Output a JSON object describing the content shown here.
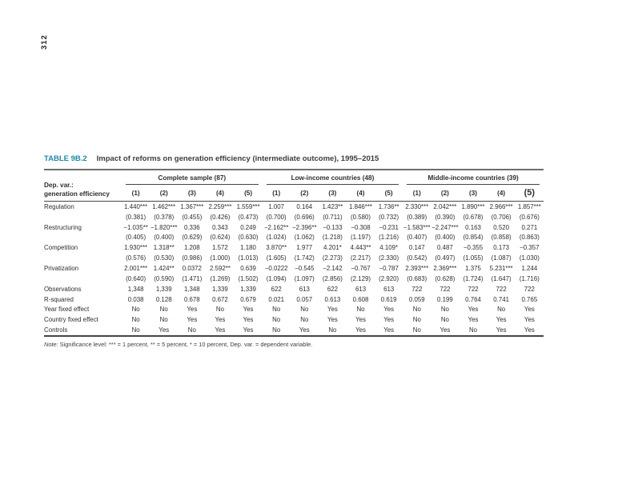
{
  "page": {
    "folio": "312"
  },
  "table": {
    "label": "TABLE 9B.2",
    "title": "Impact of reforms on generation efficiency (intermediate outcome), 1995–2015",
    "dep_var_line1": "Dep. var.:",
    "dep_var_line2": "generation efficiency",
    "groups": [
      {
        "label": "Complete sample (87)"
      },
      {
        "label": "Low-income countries (48)"
      },
      {
        "label": "Middle-income countries (39)"
      }
    ],
    "col_headers": [
      "(1)",
      "(2)",
      "(3)",
      "(4)",
      "(5)",
      "(1)",
      "(2)",
      "(3)",
      "(4)",
      "(5)",
      "(1)",
      "(2)",
      "(3)",
      "(4)",
      "(5)"
    ],
    "rows": [
      {
        "label": "Regulation",
        "coef": [
          "1.440***",
          "1.462***",
          "1.367***",
          "2.259***",
          "1.559***",
          "1.007",
          "0.164",
          "1.423**",
          "1.846***",
          "1.736**",
          "2.330***",
          "2.042***",
          "1.890***",
          "2.966***",
          "1.857***"
        ],
        "se": [
          "(0.381)",
          "(0.378)",
          "(0.455)",
          "(0.426)",
          "(0.473)",
          "(0.700)",
          "(0.696)",
          "(0.711)",
          "(0.580)",
          "(0.732)",
          "(0.389)",
          "(0.390)",
          "(0.678)",
          "(0.706)",
          "(0.676)"
        ]
      },
      {
        "label": "Restructuring",
        "coef": [
          "−1.035**",
          "−1.820***",
          "0.336",
          "0.343",
          "0.249",
          "−2.162**",
          "−2.396**",
          "−0.133",
          "−0.308",
          "−0.231",
          "−1.583***",
          "−2.247***",
          "0.163",
          "0.520",
          "0.271"
        ],
        "se": [
          "(0.405)",
          "(0.400)",
          "(0.629)",
          "(0.624)",
          "(0.630)",
          "(1.024)",
          "(1.062)",
          "(1.218)",
          "(1.197)",
          "(1.216)",
          "(0.407)",
          "(0.400)",
          "(0.854)",
          "(0.858)",
          "(0.863)"
        ]
      },
      {
        "label": "Competition",
        "coef": [
          "1.930***",
          "1.318**",
          "1.208",
          "1.572",
          "1.180",
          "3.870**",
          "1.977",
          "4.201*",
          "4.443**",
          "4.109*",
          "0.147",
          "0.487",
          "−0.355",
          "0.173",
          "−0.357"
        ],
        "se": [
          "(0.576)",
          "(0.530)",
          "(0.986)",
          "(1.000)",
          "(1.013)",
          "(1.605)",
          "(1.742)",
          "(2.273)",
          "(2.217)",
          "(2.330)",
          "(0.542)",
          "(0.497)",
          "(1.055)",
          "(1.087)",
          "(1.030)"
        ]
      },
      {
        "label": "Privatization",
        "coef": [
          "2.001***",
          "1.424**",
          "0.0372",
          "2.592**",
          "0.639",
          "−0.0222",
          "−0.545",
          "−2.142",
          "−0.767",
          "−0.787",
          "2.393***",
          "2.369***",
          "1.375",
          "5.231***",
          "1.244"
        ],
        "se": [
          "(0.640)",
          "(0.590)",
          "(1.471)",
          "(1.269)",
          "(1.502)",
          "(1.094)",
          "(1.097)",
          "(2.856)",
          "(2.129)",
          "(2.920)",
          "(0.683)",
          "(0.628)",
          "(1.724)",
          "(1.647)",
          "(1.716)"
        ]
      },
      {
        "label": "Observations",
        "coef": [
          "1,348",
          "1,339",
          "1,348",
          "1,339",
          "1,339",
          "622",
          "613",
          "622",
          "613",
          "613",
          "722",
          "722",
          "722",
          "722",
          "722"
        ]
      },
      {
        "label": "R-squared",
        "coef": [
          "0.038",
          "0.128",
          "0.678",
          "0.672",
          "0.679",
          "0.021",
          "0.057",
          "0.613",
          "0.608",
          "0.619",
          "0.059",
          "0.199",
          "0.764",
          "0.741",
          "0.765"
        ]
      },
      {
        "label": "Year fixed effect",
        "coef": [
          "No",
          "No",
          "Yes",
          "No",
          "Yes",
          "No",
          "No",
          "Yes",
          "No",
          "Yes",
          "No",
          "No",
          "Yes",
          "No",
          "Yes"
        ]
      },
      {
        "label": "Country fixed effect",
        "coef": [
          "No",
          "No",
          "Yes",
          "Yes",
          "Yes",
          "No",
          "No",
          "Yes",
          "Yes",
          "Yes",
          "No",
          "No",
          "Yes",
          "Yes",
          "Yes"
        ]
      },
      {
        "label": "Controls",
        "coef": [
          "No",
          "Yes",
          "No",
          "Yes",
          "Yes",
          "No",
          "Yes",
          "No",
          "Yes",
          "Yes",
          "No",
          "Yes",
          "No",
          "Yes",
          "Yes"
        ]
      }
    ],
    "note_label": "Note:",
    "note_text": " Significance level: *** = 1 percent, ** = 5 percent, * = 10 percent, Dep. var. = dependent variable."
  }
}
